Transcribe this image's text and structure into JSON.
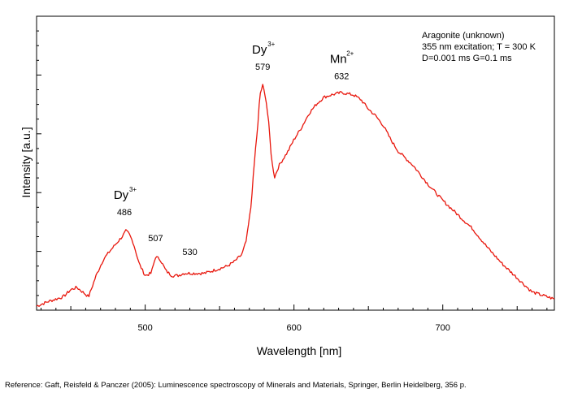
{
  "chart_data": {
    "type": "line",
    "xlabel": "Wavelength [nm]",
    "ylabel": "Intensity [a.u.]",
    "xlim": [
      427,
      775
    ],
    "ylim": [
      0,
      100
    ],
    "x_ticks": [
      500,
      600,
      700
    ],
    "y_ticks_labeled": false,
    "grid": false,
    "line_color": "#e8160c",
    "series": [
      {
        "x": [
          427,
          435,
          445,
          450,
          454,
          458,
          462,
          467,
          472,
          477,
          481,
          485,
          487,
          489,
          492,
          496,
          500,
          504,
          507,
          510,
          514,
          518,
          522,
          526,
          530,
          535,
          540,
          545,
          550,
          555,
          560,
          565,
          568,
          571,
          574,
          576,
          577,
          579,
          581,
          583,
          585,
          587,
          590,
          593,
          596,
          600,
          605,
          610,
          615,
          620,
          625,
          632,
          640,
          645,
          650,
          655,
          660,
          665,
          670,
          675,
          680,
          690,
          700,
          710,
          720,
          730,
          740,
          750,
          760,
          775
        ],
        "y": [
          0,
          2,
          4,
          7,
          8,
          6,
          4,
          13,
          20,
          24,
          27,
          30,
          32,
          31,
          27,
          18,
          13,
          14,
          21,
          20,
          15,
          13,
          13,
          14,
          14,
          14,
          14,
          15,
          16,
          17,
          19,
          22,
          28,
          42,
          66,
          79,
          90,
          94,
          89,
          78,
          62,
          55,
          60,
          63,
          66,
          71,
          76,
          82,
          86,
          89,
          90,
          91,
          90,
          88,
          84,
          81,
          77,
          71,
          66,
          63,
          60,
          52,
          45,
          39,
          33,
          25,
          18,
          12,
          6,
          3
        ]
      }
    ],
    "annotations": [
      {
        "label": "486",
        "x": 486,
        "y": 36
      },
      {
        "label": "507",
        "x": 507,
        "y": 25
      },
      {
        "label": "530",
        "x": 530,
        "y": 19
      },
      {
        "label": "579",
        "x": 579,
        "y": 98
      },
      {
        "label": "632",
        "x": 632,
        "y": 94
      }
    ],
    "ion_labels": [
      {
        "base": "Dy",
        "sup": "3+",
        "x": 486
      },
      {
        "base": "Dy",
        "sup": "3+",
        "x": 579
      },
      {
        "base": "Mn",
        "sup": "2+",
        "x": 632
      }
    ],
    "info_box": [
      "Aragonite (unknown)",
      "355 nm excitation; T = 300 K",
      "D=0.001 ms G=0.1 ms"
    ]
  },
  "reference": "Reference: Gaft, Reisfeld & Panczer (2005): Luminescence spectroscopy of Minerals and Materials, Springer, Berlin Heidelberg, 356 p."
}
